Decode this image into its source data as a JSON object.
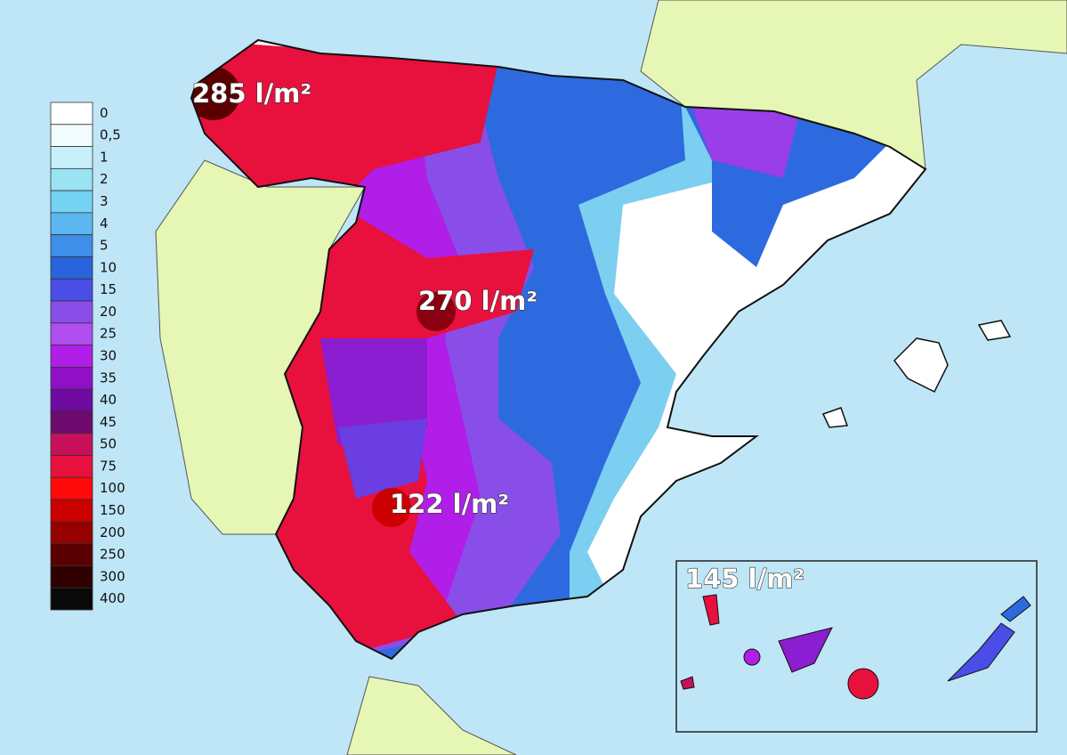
{
  "legend": {
    "items": [
      {
        "label": "0",
        "color": "#ffffff"
      },
      {
        "label": "0,5",
        "color": "#f2fbfd"
      },
      {
        "label": "1",
        "color": "#c8f0fa"
      },
      {
        "label": "2",
        "color": "#9ae3f5"
      },
      {
        "label": "3",
        "color": "#74d3f3"
      },
      {
        "label": "4",
        "color": "#5cb6f0"
      },
      {
        "label": "5",
        "color": "#3f8ee8"
      },
      {
        "label": "10",
        "color": "#2a64dc"
      },
      {
        "label": "15",
        "color": "#4a4de6"
      },
      {
        "label": "20",
        "color": "#8a4ee8"
      },
      {
        "label": "25",
        "color": "#b04ef0"
      },
      {
        "label": "30",
        "color": "#b01ee8"
      },
      {
        "label": "35",
        "color": "#9010c8"
      },
      {
        "label": "40",
        "color": "#6e0aa0"
      },
      {
        "label": "45",
        "color": "#6e0a6e"
      },
      {
        "label": "50",
        "color": "#c8105a"
      },
      {
        "label": "75",
        "color": "#e8103c"
      },
      {
        "label": "100",
        "color": "#ff0a0a"
      },
      {
        "label": "150",
        "color": "#cc0000"
      },
      {
        "label": "200",
        "color": "#960000"
      },
      {
        "label": "250",
        "color": "#5a0000"
      },
      {
        "label": "300",
        "color": "#300000"
      },
      {
        "label": "400",
        "color": "#0a0a0a"
      }
    ]
  },
  "annotations": [
    {
      "text": "285 l/m²"
    },
    {
      "text": "270 l/m²"
    },
    {
      "text": "122 l/m²"
    },
    {
      "text": "145 l/m²"
    }
  ]
}
